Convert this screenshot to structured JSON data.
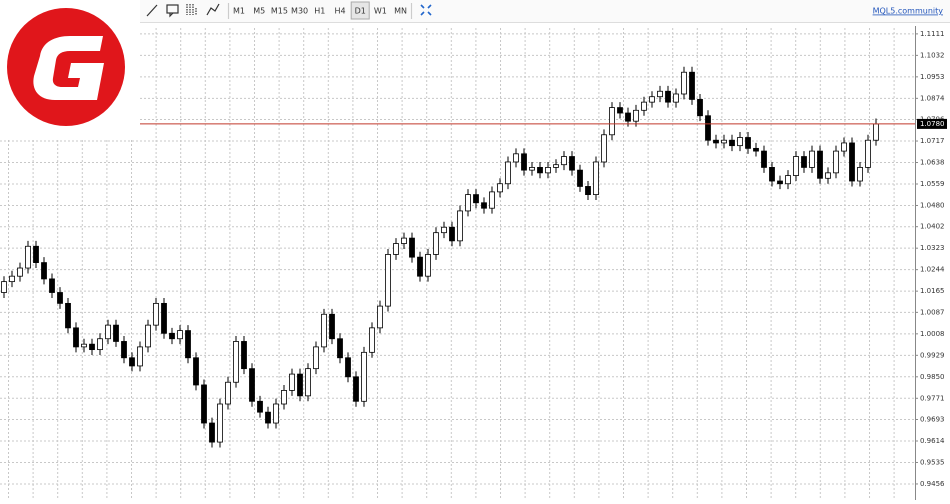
{
  "toolbar": {
    "timeframes": [
      "M1",
      "M5",
      "M15",
      "M30",
      "H1",
      "H4",
      "D1",
      "W1",
      "MN"
    ],
    "active_timeframe": "D1",
    "link": "MQL5.community"
  },
  "chart_data": {
    "type": "candlestick",
    "open": [
      1.016,
      1.02,
      1.022,
      1.025,
      1.033,
      1.027,
      1.021,
      1.016,
      1.012,
      1.003,
      0.996,
      0.997,
      0.995,
      0.999,
      1.004,
      0.998,
      0.992,
      0.989,
      0.996,
      1.004,
      1.012,
      1.001,
      0.999,
      1.002,
      0.992,
      0.982,
      0.968,
      0.961,
      0.975,
      0.983,
      0.998,
      0.988,
      0.976,
      0.972,
      0.968,
      0.975,
      0.98,
      0.986,
      0.978,
      0.988,
      0.996,
      1.008,
      0.999,
      0.992,
      0.985,
      0.976,
      0.994,
      1.003,
      1.011,
      1.03,
      1.034,
      1.036,
      1.029,
      1.022,
      1.03,
      1.038,
      1.04,
      1.035,
      1.046,
      1.052,
      1.049,
      1.047,
      1.053,
      1.056,
      1.064,
      1.067,
      1.061,
      1.062,
      1.06,
      1.062,
      1.063,
      1.066,
      1.061,
      1.055,
      1.052,
      1.064,
      1.074,
      1.084,
      1.082,
      1.079,
      1.083,
      1.086,
      1.088,
      1.09,
      1.086,
      1.089,
      1.097,
      1.087,
      1.081,
      1.072,
      1.071,
      1.072,
      1.07,
      1.073,
      1.069,
      1.068,
      1.062,
      1.057,
      1.056,
      1.059,
      1.066,
      1.062,
      1.068,
      1.058,
      1.06,
      1.068,
      1.071,
      1.057,
      1.062,
      1.072
    ],
    "high": [
      1.022,
      1.024,
      1.027,
      1.035,
      1.035,
      1.029,
      1.023,
      1.018,
      1.014,
      1.005,
      0.999,
      0.999,
      1.001,
      1.006,
      1.006,
      1.0,
      0.994,
      0.998,
      1.006,
      1.014,
      1.014,
      1.003,
      1.004,
      1.004,
      0.994,
      0.984,
      0.97,
      0.977,
      0.985,
      1.0,
      1.0,
      0.99,
      0.978,
      0.974,
      0.977,
      0.982,
      0.988,
      0.988,
      0.99,
      0.998,
      1.01,
      1.01,
      1.001,
      0.994,
      0.987,
      0.996,
      1.005,
      1.013,
      1.032,
      1.036,
      1.038,
      1.038,
      1.031,
      1.032,
      1.04,
      1.042,
      1.042,
      1.048,
      1.054,
      1.054,
      1.051,
      1.055,
      1.058,
      1.066,
      1.069,
      1.069,
      1.064,
      1.064,
      1.064,
      1.065,
      1.068,
      1.068,
      1.063,
      1.057,
      1.066,
      1.076,
      1.086,
      1.086,
      1.084,
      1.085,
      1.088,
      1.09,
      1.092,
      1.092,
      1.091,
      1.099,
      1.099,
      1.089,
      1.083,
      1.074,
      1.074,
      1.074,
      1.075,
      1.075,
      1.071,
      1.07,
      1.064,
      1.059,
      1.061,
      1.068,
      1.068,
      1.07,
      1.07,
      1.062,
      1.07,
      1.073,
      1.073,
      1.064,
      1.074,
      1.08
    ],
    "low": [
      1.014,
      1.018,
      1.02,
      1.023,
      1.025,
      1.019,
      1.014,
      1.01,
      1.001,
      0.994,
      0.994,
      0.993,
      0.993,
      0.997,
      0.996,
      0.99,
      0.987,
      0.987,
      0.994,
      1.002,
      0.999,
      0.997,
      0.997,
      0.99,
      0.98,
      0.966,
      0.959,
      0.959,
      0.973,
      0.981,
      0.986,
      0.974,
      0.97,
      0.966,
      0.966,
      0.973,
      0.978,
      0.976,
      0.976,
      0.986,
      0.994,
      0.997,
      0.99,
      0.983,
      0.974,
      0.974,
      0.992,
      1.001,
      1.009,
      1.028,
      1.032,
      1.027,
      1.02,
      1.02,
      1.028,
      1.036,
      1.033,
      1.033,
      1.044,
      1.047,
      1.045,
      1.045,
      1.051,
      1.054,
      1.062,
      1.059,
      1.059,
      1.058,
      1.058,
      1.06,
      1.061,
      1.059,
      1.053,
      1.05,
      1.05,
      1.062,
      1.072,
      1.08,
      1.077,
      1.077,
      1.081,
      1.084,
      1.086,
      1.084,
      1.084,
      1.087,
      1.085,
      1.079,
      1.07,
      1.069,
      1.069,
      1.068,
      1.068,
      1.067,
      1.066,
      1.06,
      1.055,
      1.054,
      1.054,
      1.057,
      1.06,
      1.06,
      1.056,
      1.056,
      1.058,
      1.066,
      1.055,
      1.055,
      1.06,
      1.07
    ],
    "close": [
      1.02,
      1.022,
      1.025,
      1.033,
      1.027,
      1.021,
      1.016,
      1.012,
      1.003,
      0.996,
      0.997,
      0.995,
      0.999,
      1.004,
      0.998,
      0.992,
      0.989,
      0.996,
      1.004,
      1.012,
      1.001,
      0.999,
      1.002,
      0.992,
      0.982,
      0.968,
      0.961,
      0.975,
      0.983,
      0.998,
      0.988,
      0.976,
      0.972,
      0.968,
      0.975,
      0.98,
      0.986,
      0.978,
      0.988,
      0.996,
      1.008,
      0.999,
      0.992,
      0.985,
      0.976,
      0.994,
      1.003,
      1.011,
      1.03,
      1.034,
      1.036,
      1.029,
      1.022,
      1.03,
      1.038,
      1.04,
      1.035,
      1.046,
      1.052,
      1.049,
      1.047,
      1.053,
      1.056,
      1.064,
      1.067,
      1.061,
      1.062,
      1.06,
      1.062,
      1.063,
      1.066,
      1.061,
      1.055,
      1.052,
      1.064,
      1.074,
      1.084,
      1.082,
      1.079,
      1.083,
      1.086,
      1.088,
      1.09,
      1.086,
      1.089,
      1.097,
      1.087,
      1.081,
      1.072,
      1.071,
      1.072,
      1.07,
      1.073,
      1.069,
      1.068,
      1.062,
      1.057,
      1.056,
      1.059,
      1.066,
      1.062,
      1.068,
      1.058,
      1.06,
      1.068,
      1.071,
      1.057,
      1.062,
      1.072,
      1.078
    ],
    "up_color": "#ffffff",
    "down_color": "#000000",
    "ylim": [
      0.9397,
      1.114
    ],
    "yticks": [
      1.1111,
      1.1032,
      1.0953,
      1.0874,
      1.0796,
      1.0717,
      1.0638,
      1.0559,
      {
        "value": 1.048,
        "label": "1.0480"
      },
      1.0402,
      1.0323,
      1.0244,
      1.0165,
      1.0087,
      1.0008,
      0.9929,
      {
        "value": 0.985,
        "label": "0.9850"
      },
      0.9771,
      0.9693,
      0.9614,
      0.9535,
      0.9456
    ],
    "grid": true,
    "current_price": {
      "value": 1.078,
      "label": "1.0780"
    },
    "price_line_color": "#c0392b"
  }
}
